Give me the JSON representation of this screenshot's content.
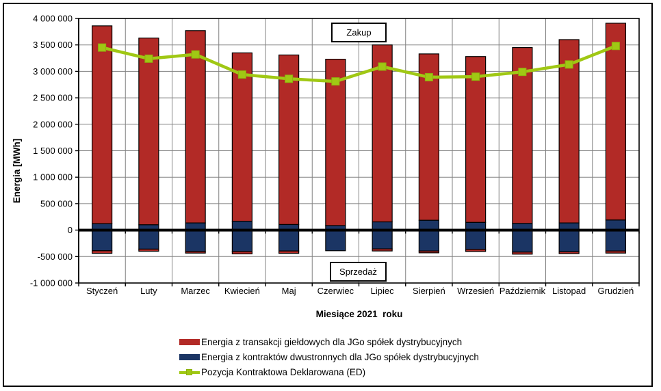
{
  "figure": {
    "background": "#FFFFFF",
    "frame_color": "#000000"
  },
  "colors": {
    "bar_exchange": "#B22A26",
    "bar_bilateral": "#1B3564",
    "line_position": "#A0C814",
    "line_marker_edge": "#8CB20D",
    "gridline": "#808080",
    "axis": "#000000",
    "text": "#000000"
  },
  "annotations": {
    "above_zero_label": "Zakup",
    "below_zero_label": "Sprzedaż"
  },
  "axes": {
    "y_title": "Energia [MWh]",
    "x_title": "Miesiące 2021  roku"
  },
  "legend": {
    "entries": [
      {
        "label": "Energia z transakcji giełdowych dla JGo spółek dystrybucyjnych",
        "swatch": "bar",
        "color": "#B22A26"
      },
      {
        "label": "Energia z kontraktów dwustronnych dla JGo spółek dystrybucyjnych",
        "swatch": "bar",
        "color": "#1B3564"
      },
      {
        "label": "Pozycja Kontraktowa Deklarowana (ED)",
        "swatch": "line-marker",
        "color": "#A0C814"
      }
    ]
  },
  "chart_data": {
    "type": "bar",
    "subtype": "stacked-bars-with-line-overlay",
    "title": "",
    "xlabel": "Miesiące 2021  roku",
    "ylabel": "Energia [MWh]",
    "ylim": [
      -1000000,
      4000000
    ],
    "ytick_step": 500000,
    "grid": true,
    "legend_position": "bottom",
    "categories": [
      "Styczeń",
      "Luty",
      "Marzec",
      "Kwiecień",
      "Maj",
      "Czerwiec",
      "Lipiec",
      "Sierpień",
      "Wrzesień",
      "Październik",
      "Listopad",
      "Grudzień"
    ],
    "yticks": [
      {
        "value": 4000000,
        "label": "4 000 000"
      },
      {
        "value": 3500000,
        "label": "3 500 000"
      },
      {
        "value": 3000000,
        "label": "3 000 000"
      },
      {
        "value": 2500000,
        "label": "2 500 000"
      },
      {
        "value": 2000000,
        "label": "2 000 000"
      },
      {
        "value": 1500000,
        "label": "1 500 000"
      },
      {
        "value": 1000000,
        "label": "1 000 000"
      },
      {
        "value": 500000,
        "label": "500 000"
      },
      {
        "value": 0,
        "label": "0"
      },
      {
        "value": -500000,
        "label": "-500 000"
      },
      {
        "value": -1000000,
        "label": "-1 000 000"
      }
    ],
    "series": [
      {
        "name": "Energia z transakcji giełdowych dla JGo spółek dystrybucyjnych",
        "type": "bar",
        "color": "#B22A26",
        "stack_role": "outer",
        "values_above_zero": [
          3740000,
          3530000,
          3635000,
          3185000,
          3205000,
          3145000,
          3345000,
          3145000,
          3135000,
          3325000,
          3465000,
          3720000
        ],
        "values_below_zero": [
          -50000,
          -40000,
          -30000,
          -45000,
          -45000,
          0,
          -40000,
          -35000,
          -40000,
          -40000,
          -35000,
          -40000
        ]
      },
      {
        "name": "Energia z kontraktów dwustronnych dla JGo spółek dystrybucyjnych",
        "type": "bar",
        "color": "#1B3564",
        "stack_role": "inner",
        "values_above_zero": [
          120000,
          100000,
          135000,
          165000,
          105000,
          85000,
          155000,
          185000,
          145000,
          125000,
          135000,
          190000
        ],
        "values_below_zero": [
          -390000,
          -360000,
          -405000,
          -405000,
          -395000,
          -390000,
          -355000,
          -395000,
          -365000,
          -415000,
          -410000,
          -395000
        ]
      },
      {
        "name": "Pozycja Kontraktowa Deklarowana (ED)",
        "type": "line",
        "color": "#A0C814",
        "marker": "square",
        "values": [
          3450000,
          3240000,
          3320000,
          2940000,
          2860000,
          2810000,
          3090000,
          2890000,
          2900000,
          2990000,
          3130000,
          3480000
        ]
      }
    ]
  }
}
